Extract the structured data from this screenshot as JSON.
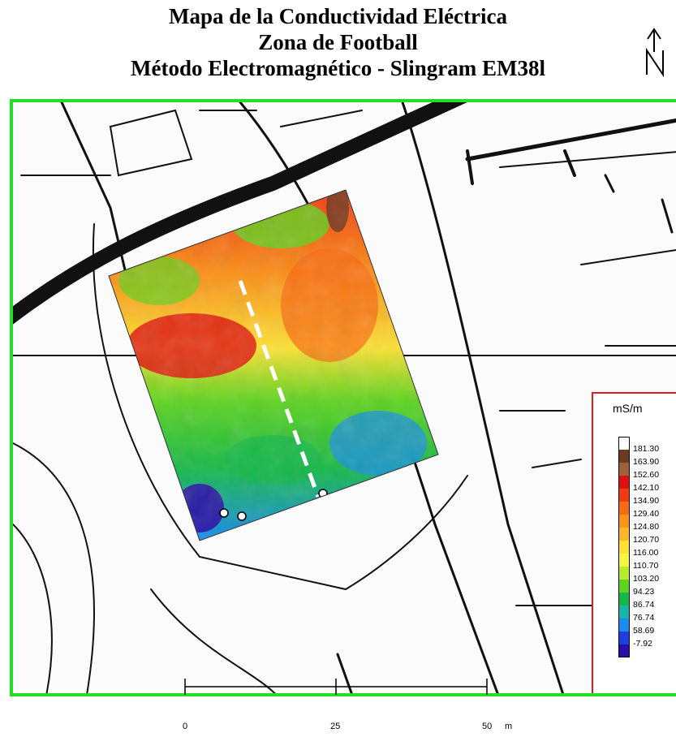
{
  "title": {
    "line1": "Mapa de la Conductividad Eléctrica",
    "line2": "Zona de Football",
    "line3": "Método Electromagnético - Slingram EM38l"
  },
  "north_arrow": {
    "icon": "north-arrow-icon"
  },
  "colors": {
    "frame": "#22e022",
    "legend_border": "#e11a1a"
  },
  "legend": {
    "unit": "mS/m",
    "entries": [
      {
        "label": "",
        "color": "#ffffff"
      },
      {
        "label": "181.30",
        "color": "#6b3a22"
      },
      {
        "label": "163.90",
        "color": "#a0603a"
      },
      {
        "label": "152.60",
        "color": "#dd1111"
      },
      {
        "label": "142.10",
        "color": "#f23a10"
      },
      {
        "label": "134.90",
        "color": "#fa6a12"
      },
      {
        "label": "129.40",
        "color": "#fb9418"
      },
      {
        "label": "124.80",
        "color": "#fbb826"
      },
      {
        "label": "120.70",
        "color": "#fde232"
      },
      {
        "label": "116.00",
        "color": "#f4f53e"
      },
      {
        "label": "110.70",
        "color": "#b8ec2a"
      },
      {
        "label": "103.20",
        "color": "#5fd41e"
      },
      {
        "label": "94.23",
        "color": "#14b84a"
      },
      {
        "label": "86.74",
        "color": "#15b8a8"
      },
      {
        "label": "76.74",
        "color": "#1a8cf0"
      },
      {
        "label": "58.69",
        "color": "#1d3ee0"
      },
      {
        "label": "-7.92",
        "color": "#2a0fa6"
      }
    ]
  },
  "scale": {
    "labels": [
      "0",
      "25",
      "50"
    ],
    "unit": "m"
  }
}
